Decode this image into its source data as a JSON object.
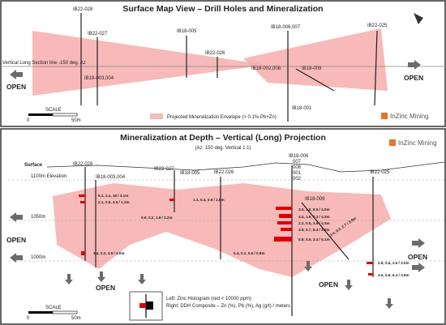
{
  "top_panel": {
    "title": "Surface Map View – Drill Holes and Mineralization",
    "section_line": "Vertical Long Section line -150 deg. Az",
    "holes": [
      "IB22-028",
      "IB22-027",
      "IB18-005",
      "IB22-026",
      "IB18-006,007",
      "IB22-025",
      "IB18-003,004",
      "IB18-002,008",
      "IB18-009",
      "IB18-001"
    ],
    "open_labels": [
      "OPEN",
      "OPEN"
    ],
    "scale": {
      "label": "SCALE",
      "start": "0",
      "end": "50m"
    },
    "legend": "Projected Mineralization Envelope (> 0.1% Pb+Zn)",
    "logo": "InZinc Mining"
  },
  "bottom_panel": {
    "title": "Mineralization at Depth – Vertical (Long) Projection",
    "subtitle": "(Az: 150 deg. Vertical 1:1)",
    "surface": "Surface",
    "elevations": [
      "1100m Elevation",
      "1050m",
      "1000m"
    ],
    "holes": [
      "IB22-028",
      "IB18-003,004",
      "IB22-027",
      "IB18-005",
      "IB22-026",
      "IB18-006",
      "007",
      "008",
      "001",
      "002",
      "IB18-009",
      "IB22-025"
    ],
    "intercepts": [
      "9.3, 2.4, 18 / 3.1m",
      "2.1, 0.5, 3.6 / 1.2m",
      "1.1, 0.4, 0.6 / 2.8m",
      "0.9, 0.2, 1.8 / 2.2m",
      "3.4, 0.3, 4.5 / 4.0m",
      "0.4, 0.1, 0.6 / 0.9m",
      "3.5, 1.0, 8.5 / 4.0m",
      "4.5, 1.9, 7.3 / 4.3m",
      "2.2, 0.5, 3.6 / 4.3m",
      "3.5, 0.7, 8.4 / 2.0m",
      "5.8, 0.5, 3.4 / 6.1m",
      "3.4, 0.2, 2.7 / 3.9m",
      "2.8, 0.6, 3.6 / 3.0m",
      "3.5, 0.6, 6.4 / 3.6m"
    ],
    "open_labels": [
      "OPEN",
      "OPEN",
      "OPEN",
      "OPEN"
    ],
    "scale": {
      "label": "SCALE",
      "start": "0",
      "end": "50m"
    },
    "legend": [
      "Left: Zinc Histogram (red < 10000 ppm)",
      "Right: DDH Composite – Zn (%), Pb (%), Ag (g/t) / meters"
    ],
    "logo": "InZinc Mining"
  }
}
